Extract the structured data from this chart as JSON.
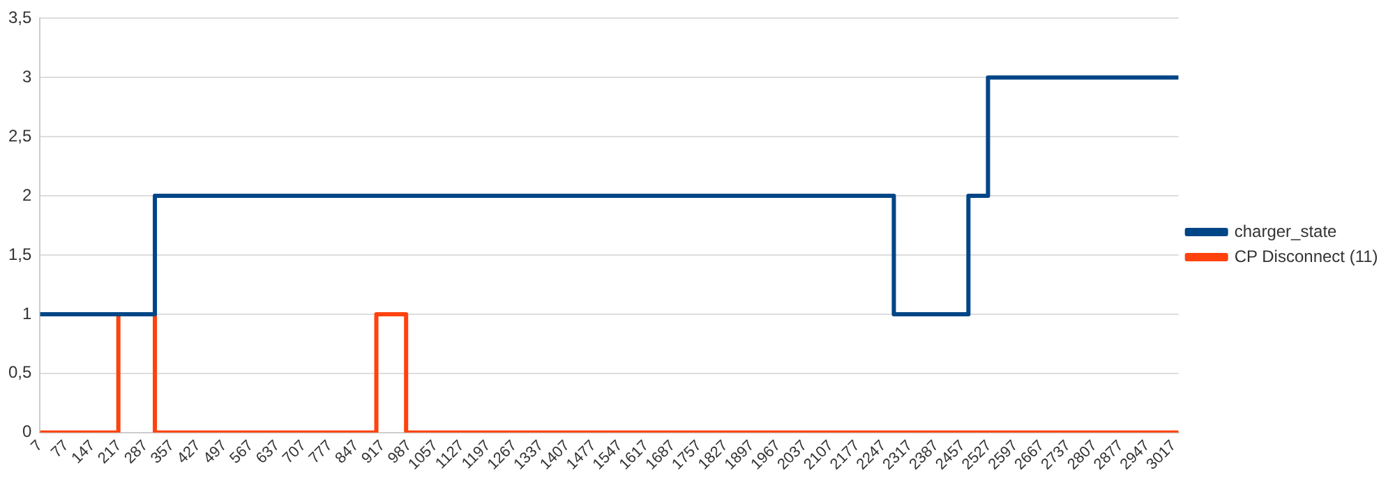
{
  "chart_data": {
    "type": "step",
    "xlim": [
      7,
      3030
    ],
    "ylim": [
      0,
      3.5
    ],
    "xticks": [
      7,
      77,
      147,
      217,
      287,
      357,
      427,
      497,
      567,
      637,
      707,
      777,
      847,
      917,
      987,
      1057,
      1127,
      1197,
      1267,
      1337,
      1407,
      1477,
      1547,
      1617,
      1687,
      1757,
      1827,
      1897,
      1967,
      2037,
      2107,
      2177,
      2247,
      2317,
      2387,
      2457,
      2527,
      2597,
      2667,
      2737,
      2807,
      2877,
      2947,
      3017
    ],
    "yticks": [
      0,
      {
        "value": 0.5,
        "label": "0,5"
      },
      1,
      {
        "value": 1.5,
        "label": "1,5"
      },
      2,
      {
        "value": 2.5,
        "label": "2,5"
      },
      3,
      {
        "value": 3.5,
        "label": "3,5"
      }
    ],
    "grid": "y",
    "legend": "right",
    "marker": "none",
    "line_style": "solid",
    "series": [
      {
        "name": "charger_state",
        "color": "#004586",
        "x": [
          7,
          312,
          2274,
          2472,
          2524,
          3030
        ],
        "values": [
          1,
          2,
          1,
          2,
          3,
          3
        ]
      },
      {
        "name": "CP Disconnect (11)",
        "color": "#ff420e",
        "x": [
          7,
          215,
          312,
          900,
          979,
          3030
        ],
        "values": [
          0,
          1,
          0,
          1,
          0,
          0
        ]
      }
    ]
  }
}
